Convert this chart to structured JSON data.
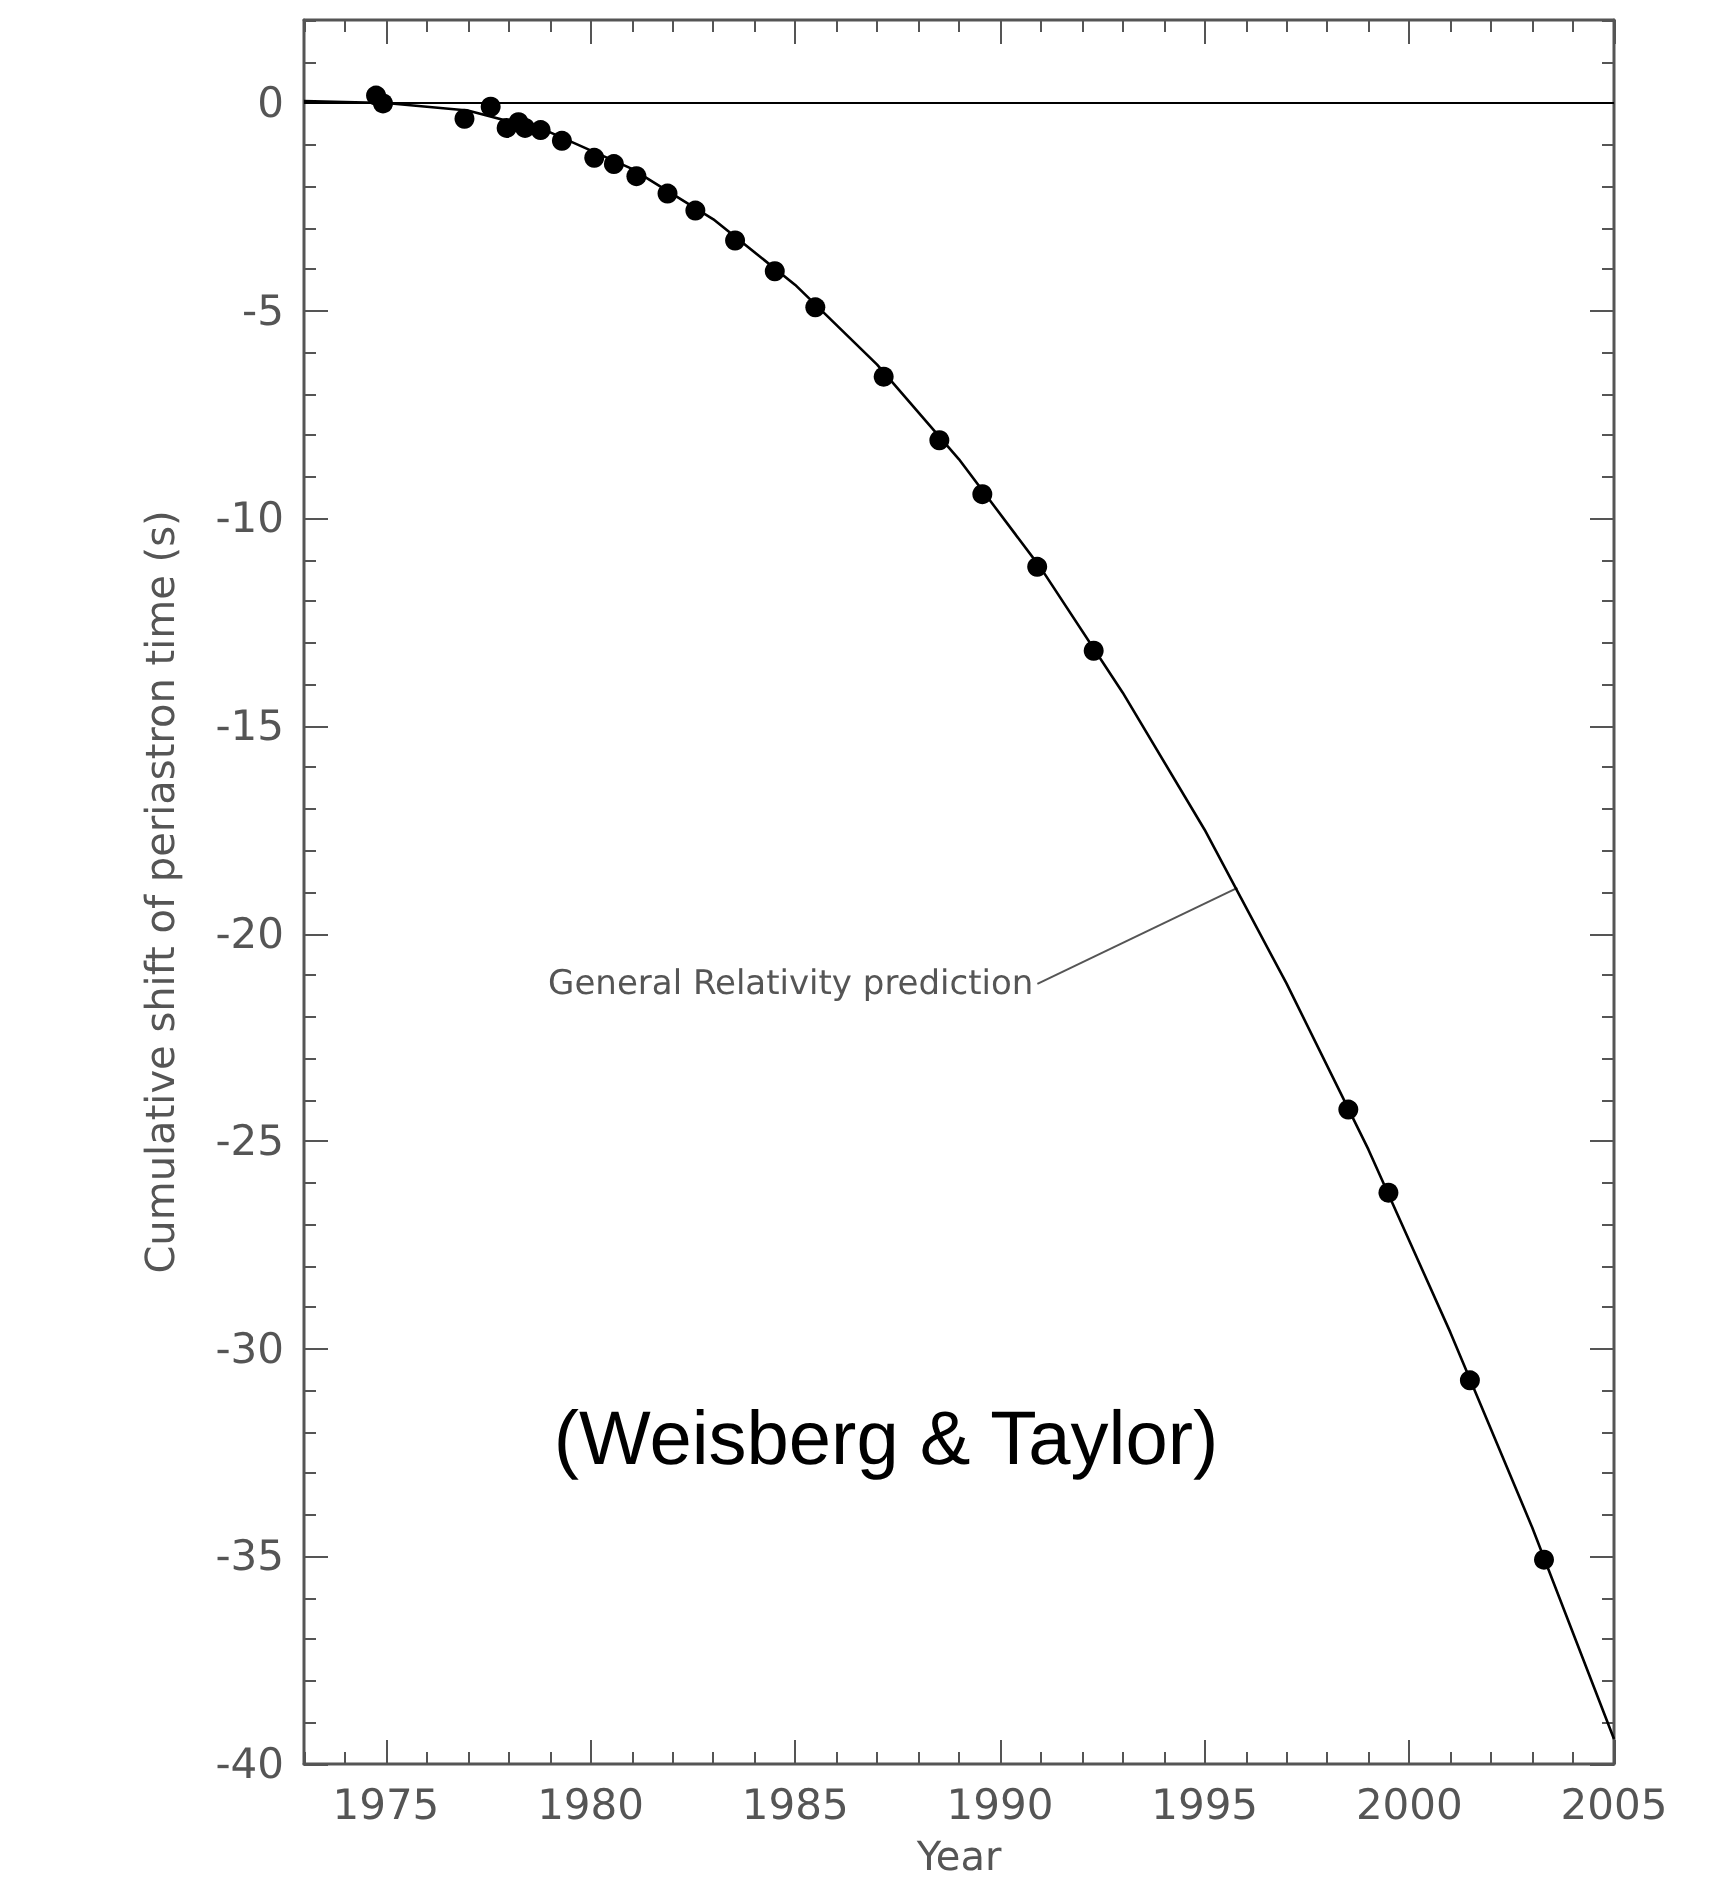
{
  "chart_data": {
    "type": "scatter",
    "xlabel": "Year",
    "ylabel": "Cumulative shift of periastron time (s)",
    "xlim": [
      1973,
      2005
    ],
    "ylim": [
      -40,
      2
    ],
    "xticks": [
      {
        "value": 1973,
        "label": null
      },
      {
        "value": 1974,
        "label": null
      },
      1975,
      {
        "value": 1976,
        "label": null
      },
      {
        "value": 1977,
        "label": null
      },
      {
        "value": 1978,
        "label": null
      },
      {
        "value": 1979,
        "label": null
      },
      1980,
      {
        "value": 1981,
        "label": null
      },
      {
        "value": 1982,
        "label": null
      },
      {
        "value": 1983,
        "label": null
      },
      {
        "value": 1984,
        "label": null
      },
      1985,
      {
        "value": 1986,
        "label": null
      },
      {
        "value": 1987,
        "label": null
      },
      {
        "value": 1988,
        "label": null
      },
      {
        "value": 1989,
        "label": null
      },
      1990,
      {
        "value": 1991,
        "label": null
      },
      {
        "value": 1992,
        "label": null
      },
      {
        "value": 1993,
        "label": null
      },
      {
        "value": 1994,
        "label": null
      },
      1995,
      {
        "value": 1996,
        "label": null
      },
      {
        "value": 1997,
        "label": null
      },
      {
        "value": 1998,
        "label": null
      },
      {
        "value": 1999,
        "label": null
      },
      2000,
      {
        "value": 2001,
        "label": null
      },
      {
        "value": 2002,
        "label": null
      },
      {
        "value": 2003,
        "label": null
      },
      {
        "value": 2004,
        "label": null
      },
      2005
    ],
    "yticks": [
      -40,
      {
        "value": -39,
        "label": null
      },
      {
        "value": -38,
        "label": null
      },
      {
        "value": -37,
        "label": null
      },
      {
        "value": -36,
        "label": null
      },
      -35,
      {
        "value": -34,
        "label": null
      },
      {
        "value": -33,
        "label": null
      },
      {
        "value": -32,
        "label": null
      },
      {
        "value": -31,
        "label": null
      },
      -30,
      {
        "value": -29,
        "label": null
      },
      {
        "value": -28,
        "label": null
      },
      {
        "value": -27,
        "label": null
      },
      {
        "value": -26,
        "label": null
      },
      -25,
      {
        "value": -24,
        "label": null
      },
      {
        "value": -23,
        "label": null
      },
      {
        "value": -22,
        "label": null
      },
      {
        "value": -21,
        "label": null
      },
      -20,
      {
        "value": -19,
        "label": null
      },
      {
        "value": -18,
        "label": null
      },
      {
        "value": -17,
        "label": null
      },
      {
        "value": -16,
        "label": null
      },
      -15,
      {
        "value": -14,
        "label": null
      },
      {
        "value": -13,
        "label": null
      },
      {
        "value": -12,
        "label": null
      },
      {
        "value": -11,
        "label": null
      },
      -10,
      {
        "value": -9,
        "label": null
      },
      {
        "value": -8,
        "label": null
      },
      {
        "value": -7,
        "label": null
      },
      {
        "value": -6,
        "label": null
      },
      -5,
      {
        "value": -4,
        "label": null
      },
      {
        "value": -3,
        "label": null
      },
      {
        "value": -2,
        "label": null
      },
      {
        "value": -1,
        "label": null
      },
      0,
      {
        "value": 1,
        "label": null
      },
      {
        "value": 2,
        "label": null
      }
    ],
    "grid": false,
    "ref_lines": [
      {
        "axis": "y",
        "value": 0,
        "color": "#000000"
      }
    ],
    "annotations": [
      {
        "text": "General Relativity prediction",
        "x": 1995.8,
        "y": -18.9
      },
      "(Weisberg & Taylor)"
    ],
    "series": [
      {
        "color": "#000000",
        "x": [
          1974.76,
          1974.93,
          1976.92,
          1977.56,
          1977.95,
          1978.24,
          1978.4,
          1978.78,
          1979.3,
          1980.09,
          1980.57,
          1981.12,
          1981.88,
          1982.56,
          1983.53,
          1984.5,
          1985.49,
          1987.16,
          1988.52,
          1989.57,
          1990.91,
          1992.29,
          1998.51,
          1999.49,
          2001.48,
          2003.29
        ],
        "values": [
          0.18,
          -0.01,
          -0.38,
          -0.09,
          -0.6,
          -0.46,
          -0.6,
          -0.65,
          -0.91,
          -1.32,
          -1.47,
          -1.76,
          -2.18,
          -2.59,
          -3.31,
          -4.05,
          -4.92,
          -6.59,
          -8.12,
          -9.42,
          -11.17,
          -13.19,
          -24.24,
          -26.24,
          -30.76,
          -35.08
        ]
      },
      {
        "type": "line",
        "color": "#000000",
        "x": [
          1973,
          1975,
          1977,
          1979,
          1981,
          1983,
          1985,
          1987,
          1989,
          1991,
          1993,
          1995,
          1997,
          1999,
          2001,
          2003,
          2005
        ],
        "values": [
          0.05,
          0,
          -0.18,
          -0.7,
          -1.58,
          -2.8,
          -4.38,
          -6.3,
          -8.58,
          -11.2,
          -14.2,
          -17.5,
          -21.2,
          -25.2,
          -29.6,
          -34.3,
          -39.4
        ]
      }
    ]
  }
}
